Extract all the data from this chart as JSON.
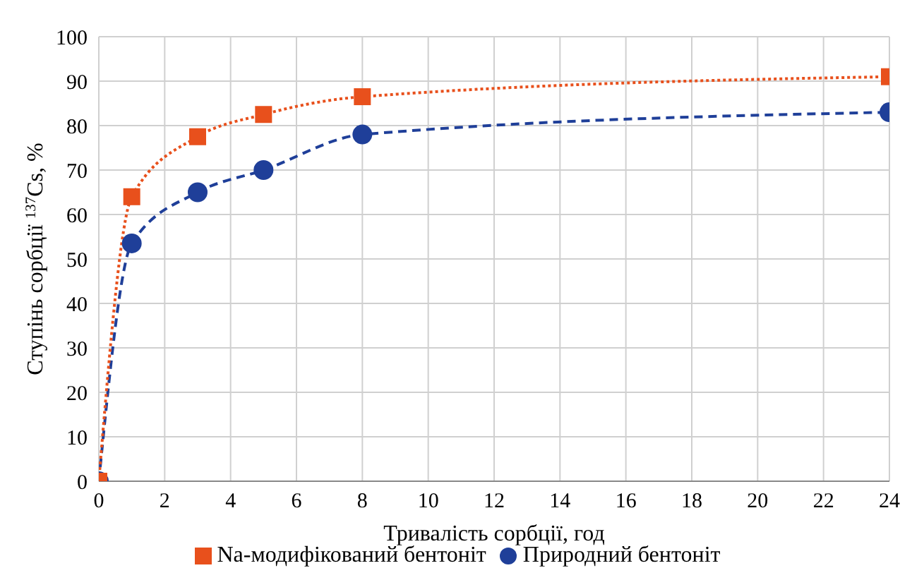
{
  "chart_data": {
    "type": "line",
    "xlabel": "Тривалість сорбції, год",
    "ylabel": "Ступінь сорбції $^{137}$Cs, %",
    "x": [
      0,
      1,
      3,
      5,
      8,
      24
    ],
    "series": [
      {
        "name": "Природний бентоніт",
        "color": "#1f3f99",
        "values": [
          0,
          53.5,
          65,
          70,
          78,
          83
        ],
        "marker": "circle",
        "line_style": "dashed"
      },
      {
        "name": "Na-модифікований бентоніт",
        "color": "#e8501c",
        "values": [
          0,
          64,
          77.5,
          82.5,
          86.5,
          91
        ],
        "marker": "square",
        "line_style": "dotted"
      }
    ],
    "xlim": [
      0,
      24
    ],
    "xticks": [
      0,
      2,
      4,
      6,
      8,
      10,
      12,
      14,
      16,
      18,
      20,
      22,
      24
    ],
    "ylim": [
      0,
      100
    ],
    "yticks": [
      0,
      10,
      20,
      30,
      40,
      50,
      60,
      70,
      80,
      90,
      100
    ],
    "grid": true,
    "legend": "bottom"
  }
}
